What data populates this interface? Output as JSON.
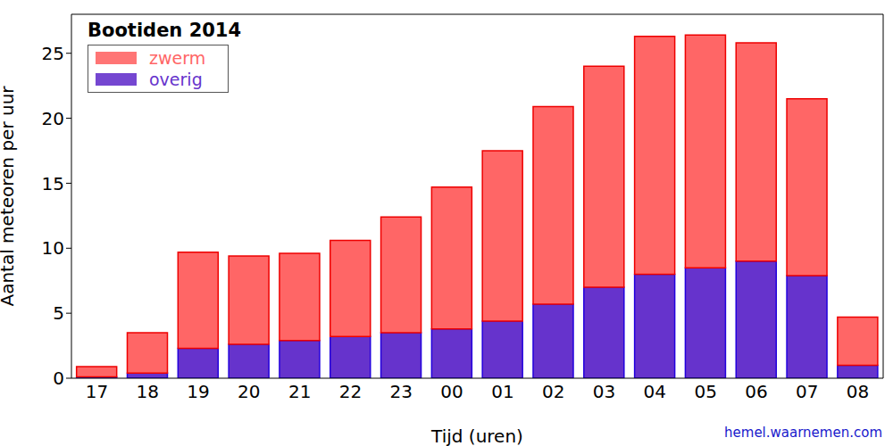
{
  "chart_data": {
    "type": "bar",
    "title": "Bootiden 2014",
    "x_label": "Tijd (uren)",
    "y_label": "Aantal meteoren per uur",
    "annotations": [
      "hemel.waarnemen.com"
    ],
    "categories": [
      "17",
      "18",
      "19",
      "20",
      "21",
      "22",
      "23",
      "00",
      "01",
      "02",
      "03",
      "04",
      "05",
      "06",
      "07",
      "08"
    ],
    "series": [
      {
        "name": "zwerm",
        "color": "#ff6666",
        "values": [
          0.8,
          3.1,
          7.4,
          6.8,
          6.7,
          7.4,
          8.9,
          10.9,
          13.1,
          15.2,
          17.0,
          18.3,
          17.9,
          16.8,
          13.6,
          3.7
        ]
      },
      {
        "name": "overig",
        "color": "#6633cc",
        "values": [
          0.1,
          0.4,
          2.3,
          2.6,
          2.9,
          3.2,
          3.5,
          3.8,
          4.4,
          5.7,
          7.0,
          8.0,
          8.5,
          9.0,
          7.9,
          1.0
        ]
      }
    ],
    "ylim": [
      0,
      28
    ],
    "yticks": [
      0,
      5,
      10,
      15,
      20,
      25
    ],
    "stacked": true,
    "grid": false,
    "legend": "upper left"
  }
}
